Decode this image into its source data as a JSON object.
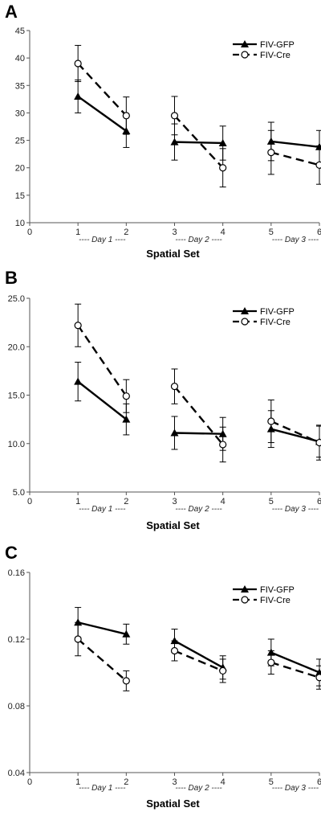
{
  "chart_data": [
    {
      "panel": "A",
      "type": "line",
      "xlabel": "Spatial Set",
      "x": [
        1,
        2,
        3,
        4,
        5,
        6
      ],
      "xticks": [
        "0",
        "1",
        "2",
        "3",
        "4",
        "5",
        "6"
      ],
      "xlim": [
        0,
        6
      ],
      "ylim": [
        10,
        45
      ],
      "yticks": [
        "10",
        "15",
        "20",
        "25",
        "30",
        "35",
        "40",
        "45"
      ],
      "ytick_values": [
        10,
        15,
        20,
        25,
        30,
        35,
        40,
        45
      ],
      "day_labels": [
        "---- Day 1 ----",
        "---- Day 2 ----",
        "---- Day 3 ----"
      ],
      "legend_position": "top-right",
      "series": [
        {
          "name": "FIV-GFP",
          "marker": "triangle",
          "dash": "solid",
          "values": [
            33.0,
            26.7,
            24.7,
            24.5,
            24.8,
            23.8
          ],
          "errors": [
            3.0,
            3.0,
            3.3,
            3.1,
            3.5,
            3.0
          ]
        },
        {
          "name": "FIV-Cre",
          "marker": "circle",
          "dash": "dashed",
          "values": [
            39.0,
            29.5,
            29.5,
            20.0,
            22.8,
            20.5
          ],
          "errors": [
            3.3,
            3.4,
            3.5,
            3.5,
            4.0,
            3.5
          ]
        }
      ]
    },
    {
      "panel": "B",
      "type": "line",
      "xlabel": "Spatial Set",
      "x": [
        1,
        2,
        3,
        4,
        5,
        6
      ],
      "xticks": [
        "0",
        "1",
        "2",
        "3",
        "4",
        "5",
        "6"
      ],
      "xlim": [
        0,
        6
      ],
      "ylim": [
        5,
        25
      ],
      "yticks": [
        "5.0",
        "10.0",
        "15.0",
        "20.0",
        "25.0"
      ],
      "ytick_values": [
        5,
        10,
        15,
        20,
        25
      ],
      "day_labels": [
        "---- Day 1 ----",
        "---- Day 2 ----",
        "---- Day 3 ----"
      ],
      "legend_position": "top-right",
      "series": [
        {
          "name": "FIV-GFP",
          "marker": "triangle",
          "dash": "solid",
          "values": [
            16.4,
            12.5,
            11.1,
            11.0,
            11.5,
            10.2
          ],
          "errors": [
            2.0,
            1.6,
            1.7,
            1.7,
            1.9,
            1.6
          ]
        },
        {
          "name": "FIV-Cre",
          "marker": "circle",
          "dash": "dashed",
          "values": [
            22.2,
            14.9,
            15.9,
            9.9,
            12.3,
            10.1
          ],
          "errors": [
            2.2,
            1.7,
            1.8,
            1.8,
            2.2,
            1.8
          ]
        }
      ]
    },
    {
      "panel": "C",
      "type": "line",
      "xlabel": "Spatial Set",
      "x": [
        1,
        2,
        3,
        4,
        5,
        6
      ],
      "xticks": [
        "0",
        "1",
        "2",
        "3",
        "4",
        "5",
        "6"
      ],
      "xlim": [
        0,
        6
      ],
      "ylim": [
        0.04,
        0.16
      ],
      "yticks": [
        "0.04",
        "0.08",
        "0.12",
        "0.16"
      ],
      "ytick_values": [
        0.04,
        0.08,
        0.12,
        0.16
      ],
      "day_labels": [
        "---- Day 1 ----",
        "---- Day 2 ----",
        "---- Day 3 ----"
      ],
      "legend_position": "top-right",
      "series": [
        {
          "name": "FIV-GFP",
          "marker": "triangle",
          "dash": "solid",
          "values": [
            0.13,
            0.123,
            0.119,
            0.103,
            0.112,
            0.1
          ],
          "errors": [
            0.009,
            0.006,
            0.007,
            0.007,
            0.008,
            0.008
          ]
        },
        {
          "name": "FIV-Cre",
          "marker": "circle",
          "dash": "dashed",
          "values": [
            0.12,
            0.095,
            0.113,
            0.101,
            0.106,
            0.097
          ],
          "errors": [
            0.01,
            0.006,
            0.006,
            0.007,
            0.007,
            0.007
          ]
        }
      ]
    }
  ]
}
